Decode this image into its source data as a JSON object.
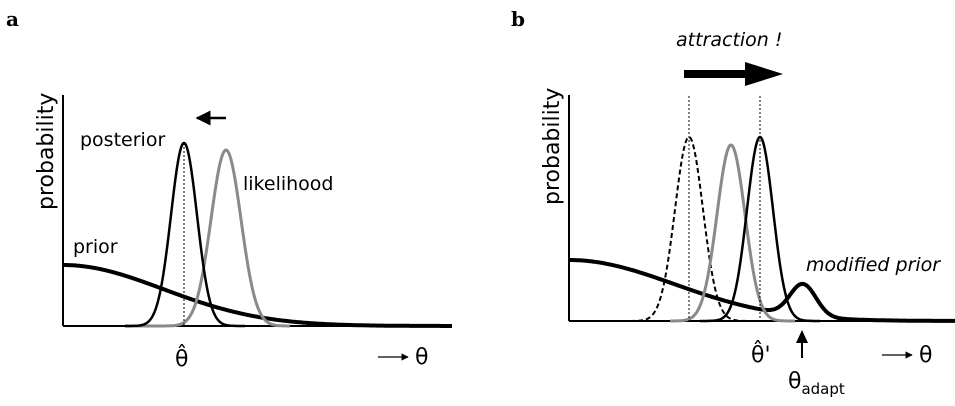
{
  "panel_a": {
    "letter": "a",
    "ylabel": "probability",
    "labels": {
      "prior": "prior",
      "posterior": "posterior",
      "likelihood": "likelihood"
    },
    "xhat": "θ̂",
    "xaxis": "θ"
  },
  "panel_b": {
    "letter": "b",
    "ylabel": "probability",
    "labels": {
      "attraction": "attraction !",
      "modified_prior": "modified prior"
    },
    "xhat": "θ̂'",
    "xaxis": "θ",
    "adapt_main": "θ",
    "adapt_sub": "adapt"
  },
  "colors": {
    "black": "#000000",
    "likelihood_gray": "#8a8a8a"
  }
}
